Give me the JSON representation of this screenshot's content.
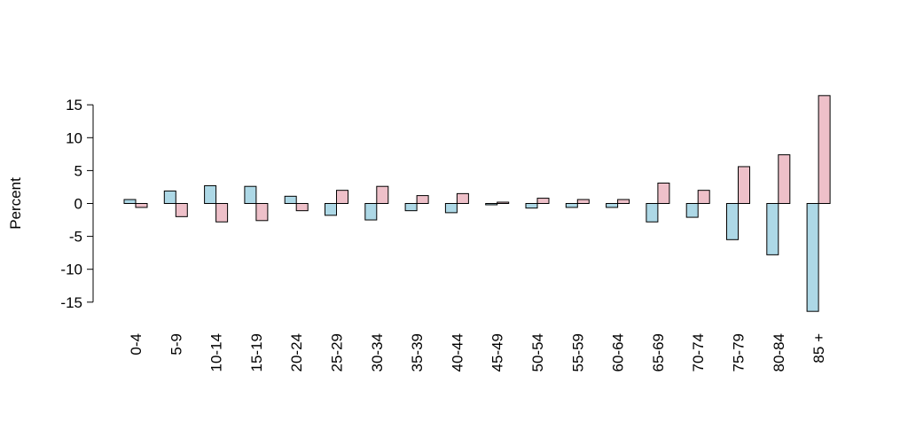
{
  "chart_data": {
    "type": "bar",
    "title": "",
    "xlabel": "",
    "ylabel": "Percent",
    "ylim": [
      -16.5,
      16.5
    ],
    "yticks": [
      -15,
      -10,
      -5,
      0,
      5,
      10,
      15
    ],
    "ytick_labels": [
      "-15",
      "-10",
      "-5",
      "0",
      "5",
      "10",
      "15"
    ],
    "grid": false,
    "legend": "none",
    "categories": [
      "0-4",
      "5-9",
      "10-14",
      "15-19",
      "20-24",
      "25-29",
      "30-34",
      "35-39",
      "40-44",
      "45-49",
      "50-54",
      "55-59",
      "60-64",
      "65-69",
      "70-74",
      "75-79",
      "80-84",
      "85 +"
    ],
    "series": [
      {
        "color": "#add8e6",
        "values": [
          0.6,
          1.9,
          2.7,
          2.6,
          1.1,
          -1.8,
          -2.5,
          -1.1,
          -1.4,
          -0.2,
          -0.7,
          -0.6,
          -0.6,
          -2.8,
          -2.1,
          -5.5,
          -7.8,
          -16.4
        ]
      },
      {
        "color": "#eec0c9",
        "values": [
          -0.6,
          -2.0,
          -2.8,
          -2.6,
          -1.1,
          2.0,
          2.6,
          1.2,
          1.5,
          0.2,
          0.8,
          0.6,
          0.6,
          3.1,
          2.0,
          5.6,
          7.4,
          16.4
        ]
      }
    ]
  }
}
